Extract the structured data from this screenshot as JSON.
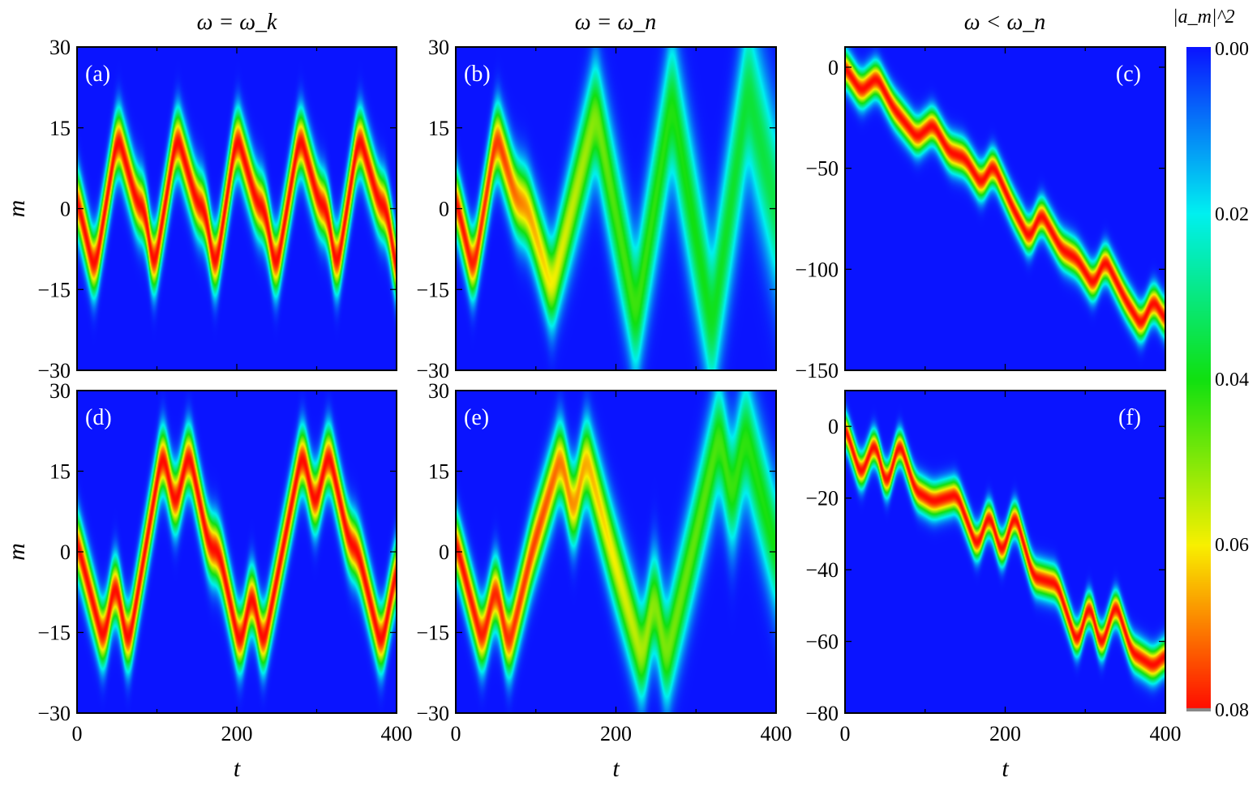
{
  "chart_data": {
    "type": "heatmap",
    "colorbar": {
      "label": "|a_m|^2",
      "range": [
        0.0,
        0.08
      ],
      "ticks": [
        "0.00",
        "0.02",
        "0.04",
        "0.06",
        "0.08"
      ],
      "colormap": [
        "#0a14ff",
        "#00f0f0",
        "#10e010",
        "#f8f000",
        "#ff0a00"
      ]
    },
    "column_titles": [
      "ω = ω_k",
      "ω = ω_n",
      "ω < ω_n"
    ],
    "xlabel": "t",
    "ylabel": "m",
    "panels": [
      {
        "label": "(a)",
        "xlim": [
          0,
          400
        ],
        "ylim": [
          -30,
          30
        ],
        "xticks": [
          "0",
          "200",
          "400"
        ],
        "yticks": [
          "30",
          "15",
          "0",
          "−15",
          "−30"
        ],
        "show_xticklabels": false,
        "ridge_center": [
          [
            0,
            2
          ],
          [
            22,
            -12
          ],
          [
            51,
            14
          ],
          [
            75,
            1
          ],
          [
            85,
            0
          ],
          [
            96,
            -12
          ],
          [
            125,
            14
          ],
          [
            150,
            1
          ],
          [
            160,
            0
          ],
          [
            173,
            -12
          ],
          [
            200,
            14
          ],
          [
            225,
            1
          ],
          [
            235,
            0
          ],
          [
            249,
            -12
          ],
          [
            279,
            14
          ],
          [
            303,
            1
          ],
          [
            313,
            0
          ],
          [
            325,
            -12
          ],
          [
            353,
            14
          ],
          [
            378,
            1
          ],
          [
            388,
            0
          ],
          [
            400,
            -12
          ]
        ],
        "peak": [
          [
            0,
            0.08
          ],
          [
            400,
            0.08
          ]
        ],
        "width": [
          [
            0,
            4
          ],
          [
            400,
            4
          ]
        ]
      },
      {
        "label": "(b)",
        "xlim": [
          0,
          400
        ],
        "ylim": [
          -30,
          30
        ],
        "xticks": [
          "0",
          "200",
          "400"
        ],
        "yticks": [
          "30",
          "15",
          "0",
          "−15",
          "−30"
        ],
        "show_xticklabels": false,
        "ridge_center": [
          [
            0,
            2
          ],
          [
            22,
            -12
          ],
          [
            51,
            14
          ],
          [
            75,
            2
          ],
          [
            90,
            0
          ],
          [
            120,
            -15
          ],
          [
            175,
            18
          ],
          [
            225,
            -20
          ],
          [
            270,
            20
          ],
          [
            320,
            -22
          ],
          [
            365,
            22
          ],
          [
            400,
            0
          ]
        ],
        "peak": [
          [
            0,
            0.08
          ],
          [
            60,
            0.075
          ],
          [
            120,
            0.06
          ],
          [
            200,
            0.045
          ],
          [
            400,
            0.035
          ]
        ],
        "width": [
          [
            0,
            4
          ],
          [
            100,
            5
          ],
          [
            200,
            8
          ],
          [
            400,
            11
          ]
        ]
      },
      {
        "label": "(c)",
        "xlim": [
          0,
          400
        ],
        "ylim": [
          -150,
          10
        ],
        "xticks": [
          "0",
          "200",
          "400"
        ],
        "yticks": [
          "0",
          "−50",
          "−100",
          "−150"
        ],
        "show_xticklabels": false,
        "ridge_center": [
          [
            0,
            0
          ],
          [
            20,
            -12
          ],
          [
            40,
            -5
          ],
          [
            60,
            -20
          ],
          [
            90,
            -35
          ],
          [
            110,
            -28
          ],
          [
            130,
            -42
          ],
          [
            150,
            -45
          ],
          [
            170,
            -58
          ],
          [
            185,
            -48
          ],
          [
            210,
            -70
          ],
          [
            230,
            -85
          ],
          [
            245,
            -72
          ],
          [
            270,
            -90
          ],
          [
            290,
            -95
          ],
          [
            310,
            -108
          ],
          [
            325,
            -95
          ],
          [
            350,
            -115
          ],
          [
            370,
            -128
          ],
          [
            385,
            -115
          ],
          [
            400,
            -125
          ]
        ],
        "peak": [
          [
            0,
            0.08
          ],
          [
            400,
            0.08
          ]
        ],
        "width": [
          [
            0,
            6
          ],
          [
            400,
            6
          ]
        ]
      },
      {
        "label": "(d)",
        "xlim": [
          0,
          400
        ],
        "ylim": [
          -30,
          30
        ],
        "xticks": [
          "0",
          "200",
          "400"
        ],
        "yticks": [
          "30",
          "15",
          "0",
          "−15",
          "−30"
        ],
        "show_xticklabels": true,
        "ridge_center": [
          [
            0,
            2
          ],
          [
            33,
            -17
          ],
          [
            48,
            -5
          ],
          [
            64,
            -18
          ],
          [
            107,
            19
          ],
          [
            123,
            8
          ],
          [
            140,
            19
          ],
          [
            165,
            1
          ],
          [
            178,
            0
          ],
          [
            204,
            -18
          ],
          [
            219,
            -7
          ],
          [
            233,
            -18
          ],
          [
            282,
            19
          ],
          [
            298,
            8
          ],
          [
            315,
            19
          ],
          [
            340,
            2
          ],
          [
            352,
            0
          ],
          [
            381,
            -18
          ],
          [
            400,
            -3
          ]
        ],
        "peak": [
          [
            0,
            0.08
          ],
          [
            400,
            0.08
          ]
        ],
        "width": [
          [
            0,
            4
          ],
          [
            400,
            4
          ]
        ]
      },
      {
        "label": "(e)",
        "xlim": [
          0,
          400
        ],
        "ylim": [
          -30,
          30
        ],
        "xticks": [
          "0",
          "200",
          "400"
        ],
        "yticks": [
          "30",
          "15",
          "0",
          "−15",
          "−30"
        ],
        "show_xticklabels": true,
        "ridge_center": [
          [
            0,
            2
          ],
          [
            33,
            -17
          ],
          [
            50,
            -6
          ],
          [
            66,
            -18
          ],
          [
            95,
            0
          ],
          [
            131,
            18
          ],
          [
            147,
            7
          ],
          [
            163,
            18
          ],
          [
            195,
            0
          ],
          [
            233,
            -20
          ],
          [
            248,
            -8
          ],
          [
            263,
            -20
          ],
          [
            295,
            0
          ],
          [
            329,
            22
          ],
          [
            345,
            10
          ],
          [
            362,
            22
          ],
          [
            400,
            0
          ]
        ],
        "peak": [
          [
            0,
            0.08
          ],
          [
            100,
            0.075
          ],
          [
            170,
            0.065
          ],
          [
            250,
            0.05
          ],
          [
            400,
            0.04
          ]
        ],
        "width": [
          [
            0,
            4
          ],
          [
            150,
            5
          ],
          [
            250,
            6.5
          ],
          [
            400,
            8
          ]
        ]
      },
      {
        "label": "(f)",
        "xlim": [
          0,
          400
        ],
        "ylim": [
          -80,
          10
        ],
        "xticks": [
          "0",
          "200",
          "400"
        ],
        "yticks": [
          "0",
          "−20",
          "−40",
          "−60",
          "−80"
        ],
        "show_xticklabels": true,
        "ridge_center": [
          [
            0,
            0
          ],
          [
            20,
            -14
          ],
          [
            37,
            -4
          ],
          [
            52,
            -17
          ],
          [
            68,
            -4
          ],
          [
            88,
            -18
          ],
          [
            110,
            -21
          ],
          [
            140,
            -19
          ],
          [
            165,
            -34
          ],
          [
            180,
            -24
          ],
          [
            196,
            -36
          ],
          [
            212,
            -24
          ],
          [
            235,
            -42
          ],
          [
            265,
            -44
          ],
          [
            290,
            -61
          ],
          [
            305,
            -49
          ],
          [
            320,
            -62
          ],
          [
            338,
            -49
          ],
          [
            358,
            -63
          ],
          [
            385,
            -67
          ],
          [
            400,
            -64
          ]
        ],
        "peak": [
          [
            0,
            0.08
          ],
          [
            400,
            0.08
          ]
        ],
        "width": [
          [
            0,
            3.2
          ],
          [
            400,
            3.2
          ]
        ]
      }
    ]
  }
}
